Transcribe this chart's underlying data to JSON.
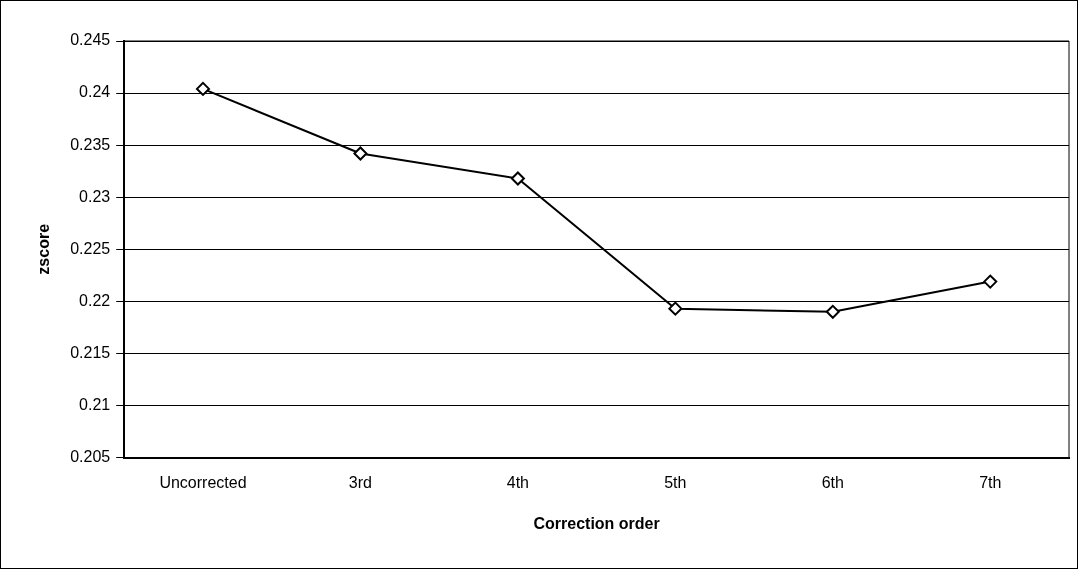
{
  "chart_data": {
    "type": "line",
    "xlabel": "Correction order",
    "ylabel": "zscore",
    "categories": [
      "Uncorrected",
      "3rd",
      "4th",
      "5th",
      "6th",
      "7th"
    ],
    "series": [
      {
        "color": "#000000",
        "values": [
          0.2404,
          0.2342,
          0.2318,
          0.2193,
          0.219,
          0.2219
        ]
      }
    ],
    "ylim": [
      0.205,
      0.245
    ],
    "yticks": [
      0.205,
      0.21,
      0.215,
      0.22,
      0.225,
      0.23,
      0.235,
      0.24,
      0.245
    ],
    "grid": "y",
    "legend": false,
    "marker": "diamond",
    "line_style": "solid"
  }
}
